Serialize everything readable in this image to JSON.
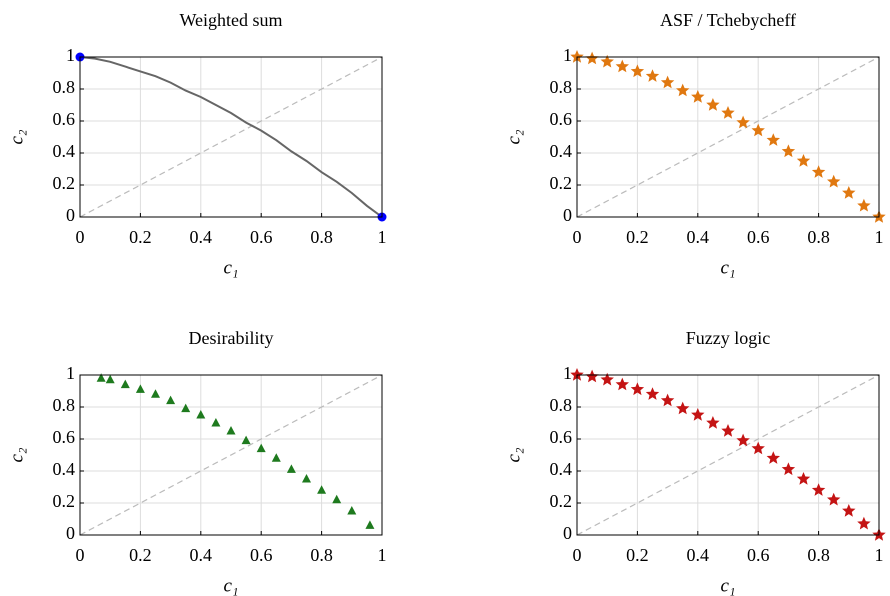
{
  "chart_data": [
    {
      "type": "scatter",
      "title": "Weighted sum",
      "xlabel": "c₁",
      "ylabel": "c₂",
      "xlim": [
        0,
        1
      ],
      "ylim": [
        0,
        1
      ],
      "xticks": [
        0,
        0.2,
        0.4,
        0.6,
        0.8,
        1
      ],
      "yticks": [
        0,
        0.2,
        0.4,
        0.6,
        0.8,
        1
      ],
      "grid": true,
      "series": [
        {
          "color": "#bbbbbb",
          "style": "dashed",
          "x": [
            0,
            1
          ],
          "values": [
            0,
            1
          ]
        },
        {
          "color": "#666666",
          "style": "line",
          "x": [
            0,
            0.05,
            0.1,
            0.15,
            0.2,
            0.25,
            0.3,
            0.35,
            0.4,
            0.45,
            0.5,
            0.55,
            0.6,
            0.65,
            0.7,
            0.75,
            0.8,
            0.85,
            0.9,
            0.95,
            1
          ],
          "values": [
            1,
            0.99,
            0.97,
            0.94,
            0.91,
            0.88,
            0.84,
            0.79,
            0.75,
            0.7,
            0.65,
            0.59,
            0.54,
            0.48,
            0.41,
            0.35,
            0.28,
            0.22,
            0.15,
            0.07,
            0
          ]
        },
        {
          "color": "#0000ff",
          "style": "markers",
          "marker": "circle",
          "x": [
            0,
            1
          ],
          "values": [
            1,
            0
          ]
        }
      ]
    },
    {
      "type": "scatter",
      "title": "ASF / Tchebycheff",
      "xlabel": "c₁",
      "ylabel": "c₂",
      "xlim": [
        0,
        1
      ],
      "ylim": [
        0,
        1
      ],
      "xticks": [
        0,
        0.2,
        0.4,
        0.6,
        0.8,
        1
      ],
      "yticks": [
        0,
        0.2,
        0.4,
        0.6,
        0.8,
        1
      ],
      "grid": true,
      "series": [
        {
          "color": "#bbbbbb",
          "style": "dashed",
          "x": [
            0,
            1
          ],
          "values": [
            0,
            1
          ]
        },
        {
          "color": "#e07810",
          "style": "markers",
          "marker": "star",
          "x": [
            0,
            0.05,
            0.1,
            0.15,
            0.2,
            0.25,
            0.3,
            0.35,
            0.4,
            0.45,
            0.5,
            0.55,
            0.6,
            0.65,
            0.7,
            0.75,
            0.8,
            0.85,
            0.9,
            0.95,
            1
          ],
          "values": [
            1,
            0.99,
            0.97,
            0.94,
            0.91,
            0.88,
            0.84,
            0.79,
            0.75,
            0.7,
            0.65,
            0.59,
            0.54,
            0.48,
            0.41,
            0.35,
            0.28,
            0.22,
            0.15,
            0.07,
            0
          ]
        }
      ]
    },
    {
      "type": "scatter",
      "title": "Desirability",
      "xlabel": "c₁",
      "ylabel": "c₂",
      "xlim": [
        0,
        1
      ],
      "ylim": [
        0,
        1
      ],
      "xticks": [
        0,
        0.2,
        0.4,
        0.6,
        0.8,
        1
      ],
      "yticks": [
        0,
        0.2,
        0.4,
        0.6,
        0.8,
        1
      ],
      "grid": true,
      "series": [
        {
          "color": "#bbbbbb",
          "style": "dashed",
          "x": [
            0,
            1
          ],
          "values": [
            0,
            1
          ]
        },
        {
          "color": "#1e7a1e",
          "style": "markers",
          "marker": "triangle",
          "x": [
            0.07,
            0.1,
            0.15,
            0.2,
            0.25,
            0.3,
            0.35,
            0.4,
            0.45,
            0.5,
            0.55,
            0.6,
            0.65,
            0.7,
            0.75,
            0.8,
            0.85,
            0.9,
            0.96
          ],
          "values": [
            0.98,
            0.97,
            0.94,
            0.91,
            0.88,
            0.84,
            0.79,
            0.75,
            0.7,
            0.65,
            0.59,
            0.54,
            0.48,
            0.41,
            0.35,
            0.28,
            0.22,
            0.15,
            0.06
          ]
        }
      ]
    },
    {
      "type": "scatter",
      "title": "Fuzzy logic",
      "xlabel": "c₁",
      "ylabel": "c₂",
      "xlim": [
        0,
        1
      ],
      "ylim": [
        0,
        1
      ],
      "xticks": [
        0,
        0.2,
        0.4,
        0.6,
        0.8,
        1
      ],
      "yticks": [
        0,
        0.2,
        0.4,
        0.6,
        0.8,
        1
      ],
      "grid": true,
      "series": [
        {
          "color": "#bbbbbb",
          "style": "dashed",
          "x": [
            0,
            1
          ],
          "values": [
            0,
            1
          ]
        },
        {
          "color": "#c41414",
          "style": "markers",
          "marker": "star",
          "x": [
            0,
            0.05,
            0.1,
            0.15,
            0.2,
            0.25,
            0.3,
            0.35,
            0.4,
            0.45,
            0.5,
            0.55,
            0.6,
            0.65,
            0.7,
            0.75,
            0.8,
            0.85,
            0.9,
            0.95,
            1
          ],
          "values": [
            1,
            0.99,
            0.97,
            0.94,
            0.91,
            0.88,
            0.84,
            0.79,
            0.75,
            0.7,
            0.65,
            0.59,
            0.54,
            0.48,
            0.41,
            0.35,
            0.28,
            0.22,
            0.15,
            0.07,
            0
          ]
        }
      ]
    }
  ]
}
